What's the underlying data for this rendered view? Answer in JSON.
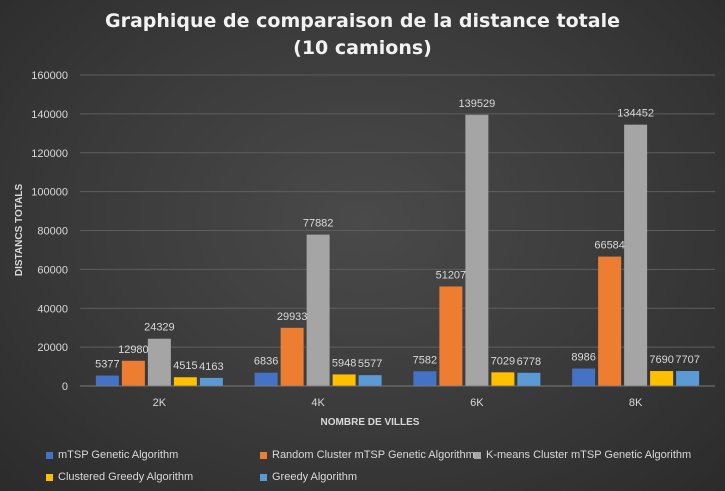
{
  "chart_data": {
    "type": "bar",
    "title_line1": "Graphique de comparaison de la distance totale",
    "title_line2": "(10 camions)",
    "xlabel": "NOMBRE DE VILLES",
    "ylabel": "DISTANCS TOTALS",
    "ylim": [
      0,
      160000
    ],
    "yticks": [
      0,
      20000,
      40000,
      60000,
      80000,
      100000,
      120000,
      140000,
      160000
    ],
    "grid": true,
    "legend_position": "bottom",
    "categories": [
      "2K",
      "4K",
      "6K",
      "8K"
    ],
    "series": [
      {
        "name": "mTSP Genetic Algorithm",
        "color": "#4472c4",
        "values": [
          5377,
          6836,
          7582,
          8986
        ]
      },
      {
        "name": "Random Cluster mTSP Genetic Algorithm",
        "color": "#ed7d31",
        "values": [
          12980,
          29933,
          51207,
          66584
        ]
      },
      {
        "name": "K-means Cluster mTSP Genetic Algorithm",
        "color": "#a5a5a5",
        "values": [
          24329,
          77882,
          139529,
          134452
        ]
      },
      {
        "name": "Clustered Greedy Algorithm",
        "color": "#ffc000",
        "values": [
          4515,
          5948,
          7029,
          7690
        ]
      },
      {
        "name": "Greedy Algorithm",
        "color": "#5b9bd5",
        "values": [
          4163,
          5577,
          6778,
          7707
        ]
      }
    ]
  }
}
